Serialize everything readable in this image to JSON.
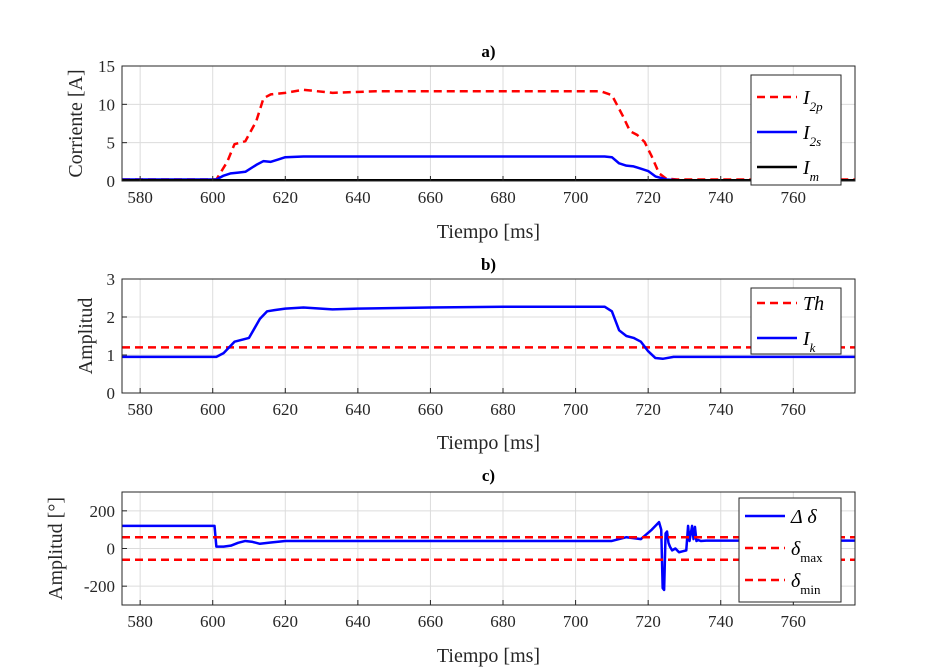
{
  "colors": {
    "red": "#ff0000",
    "blue": "#0000ff",
    "black": "#000000"
  },
  "chart_data": [
    {
      "type": "line",
      "title": "a)",
      "xlabel": "Tiempo [ms]",
      "ylabel": "Corriente [A]",
      "xlim": [
        575,
        777
      ],
      "ylim": [
        0,
        15
      ],
      "xticks": [
        580,
        600,
        620,
        640,
        660,
        680,
        700,
        720,
        740,
        760
      ],
      "yticks": [
        0,
        5,
        10,
        15
      ],
      "grid": true,
      "legend": "top-right",
      "series": [
        {
          "name": "I",
          "sub": "2p",
          "color": "#ff0000",
          "dash": true,
          "x": [
            575,
            601,
            604,
            606,
            609,
            612,
            614,
            616,
            620,
            625,
            633,
            645,
            660,
            680,
            700,
            707,
            710,
            713,
            715,
            717,
            719,
            721,
            723,
            725,
            728,
            777
          ],
          "y": [
            0.2,
            0.2,
            2.5,
            4.8,
            5.2,
            7.8,
            10.8,
            11.3,
            11.5,
            11.9,
            11.5,
            11.7,
            11.7,
            11.7,
            11.7,
            11.7,
            11.2,
            8.5,
            6.5,
            6.0,
            5.1,
            3.2,
            1.0,
            0.3,
            0.2,
            0.2
          ]
        },
        {
          "name": "I",
          "sub": "2s",
          "color": "#0000ff",
          "dash": false,
          "x": [
            575,
            601,
            603,
            605,
            607,
            609,
            612,
            614,
            616,
            618,
            620,
            625,
            640,
            660,
            680,
            700,
            708,
            710,
            712,
            714,
            716,
            718,
            720,
            722,
            725,
            728,
            777
          ],
          "y": [
            0.2,
            0.2,
            0.7,
            1.0,
            1.1,
            1.2,
            2.1,
            2.6,
            2.5,
            2.8,
            3.1,
            3.2,
            3.2,
            3.2,
            3.2,
            3.2,
            3.2,
            3.1,
            2.3,
            2.0,
            1.9,
            1.6,
            1.3,
            0.6,
            0.2,
            0.1,
            0.1
          ]
        },
        {
          "name": "I",
          "sub": "m",
          "color": "#000000",
          "dash": false,
          "x": [
            575,
            777
          ],
          "y": [
            0.1,
            0.1
          ]
        }
      ]
    },
    {
      "type": "line",
      "title": "b)",
      "xlabel": "Tiempo [ms]",
      "ylabel": "Amplitud",
      "xlim": [
        575,
        777
      ],
      "ylim": [
        0,
        3
      ],
      "xticks": [
        580,
        600,
        620,
        640,
        660,
        680,
        700,
        720,
        740,
        760
      ],
      "yticks": [
        0,
        1,
        2,
        3
      ],
      "grid": true,
      "legend": "top-right",
      "series": [
        {
          "name": "Th",
          "sub": "",
          "color": "#ff0000",
          "dash": true,
          "x": [
            575,
            777
          ],
          "y": [
            1.2,
            1.2
          ]
        },
        {
          "name": "I",
          "sub": "k",
          "color": "#0000ff",
          "dash": false,
          "x": [
            575,
            601,
            603,
            606,
            608,
            610,
            613,
            615,
            617,
            620,
            625,
            633,
            640,
            660,
            680,
            700,
            708,
            710,
            712,
            714,
            716,
            718,
            720,
            722,
            724,
            727,
            730,
            777
          ],
          "y": [
            0.95,
            0.95,
            1.05,
            1.35,
            1.4,
            1.45,
            1.95,
            2.15,
            2.18,
            2.22,
            2.25,
            2.2,
            2.22,
            2.25,
            2.27,
            2.27,
            2.27,
            2.15,
            1.65,
            1.5,
            1.45,
            1.35,
            1.1,
            0.92,
            0.9,
            0.95,
            0.95,
            0.95
          ]
        }
      ]
    },
    {
      "type": "line",
      "title": "c)",
      "xlabel": "Tiempo [ms]",
      "ylabel": "Amplitud [°]",
      "xlim": [
        575,
        777
      ],
      "ylim": [
        -300,
        300
      ],
      "xticks": [
        580,
        600,
        620,
        640,
        660,
        680,
        700,
        720,
        740,
        760
      ],
      "yticks": [
        -200,
        0,
        200
      ],
      "grid": true,
      "legend": "top-right",
      "series": [
        {
          "name": "Δ δ",
          "sub": "",
          "color": "#0000ff",
          "dash": false,
          "italic": false,
          "x": [
            575,
            600.5,
            601,
            603,
            605,
            607,
            609,
            611,
            613,
            616,
            620,
            640,
            680,
            710,
            714,
            718,
            721,
            723,
            723.6,
            724,
            724.4,
            724.8,
            725.2,
            725.6,
            726,
            726.6,
            727.5,
            728.5,
            729.5,
            730.5,
            731,
            731.4,
            732.1,
            732.5,
            732.9,
            733.3,
            733.8,
            734.5,
            736,
            777
          ],
          "y": [
            120,
            120,
            10,
            10,
            15,
            30,
            40,
            35,
            25,
            32,
            40,
            40,
            40,
            40,
            60,
            50,
            100,
            140,
            100,
            -210,
            -220,
            80,
            90,
            30,
            10,
            -10,
            0,
            -20,
            -15,
            -10,
            120,
            40,
            120,
            50,
            115,
            40,
            45,
            40,
            42,
            42
          ]
        },
        {
          "name": "δ",
          "sub": "max",
          "color": "#ff0000",
          "dash": true,
          "x": [
            575,
            777
          ],
          "y": [
            60,
            60
          ]
        },
        {
          "name": "δ",
          "sub": "min",
          "color": "#ff0000",
          "dash": true,
          "x": [
            575,
            777
          ],
          "y": [
            -60,
            -60
          ]
        }
      ]
    }
  ]
}
